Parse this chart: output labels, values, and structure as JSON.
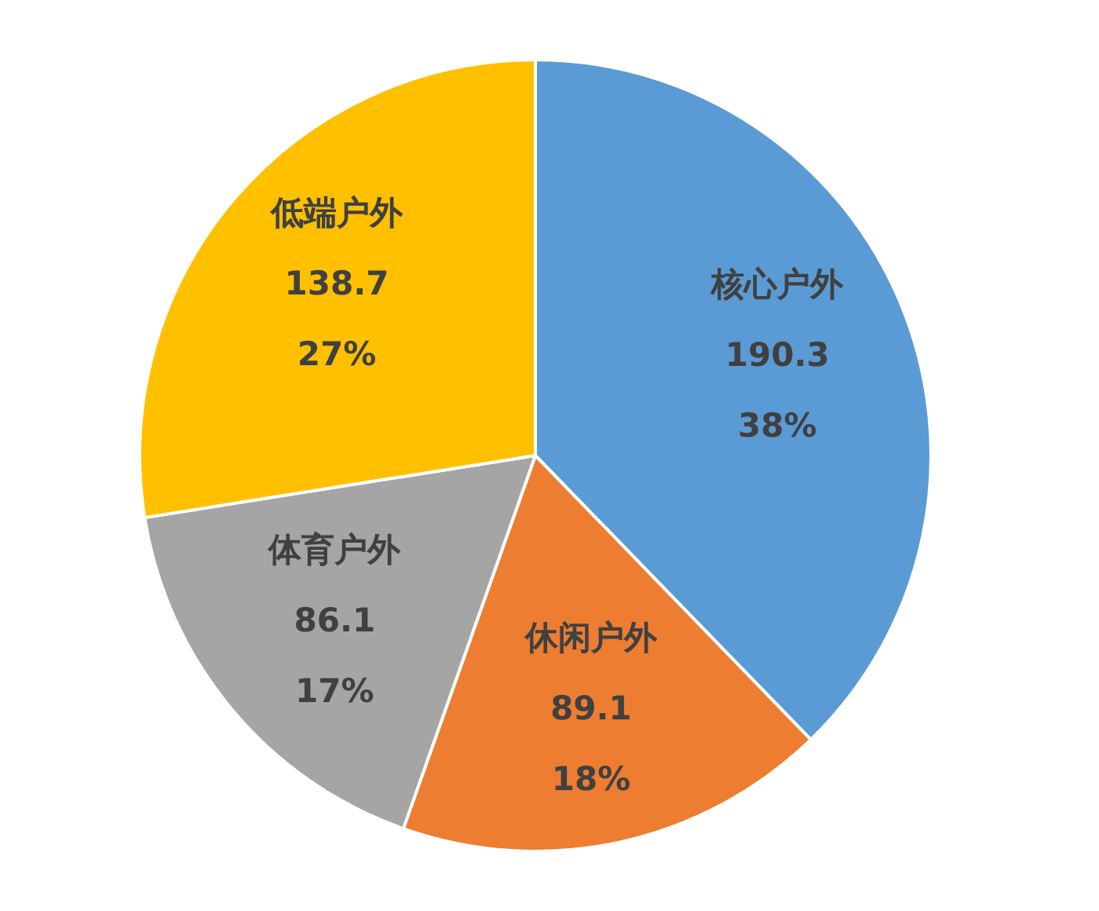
{
  "chart_data": {
    "type": "pie",
    "categories": [
      "核心户外",
      "休闲户外",
      "体育户外",
      "低端户外"
    ],
    "values": [
      190.3,
      89.1,
      86.1,
      138.7
    ],
    "colors": [
      "#5b9bd5",
      "#ed7d31",
      "#a5a5a5",
      "#ffc000"
    ],
    "value_labels": [
      "190.3\n38%",
      "89.1\n18%",
      "86.1\n17%",
      "138.7\n27%"
    ],
    "legend": false
  }
}
